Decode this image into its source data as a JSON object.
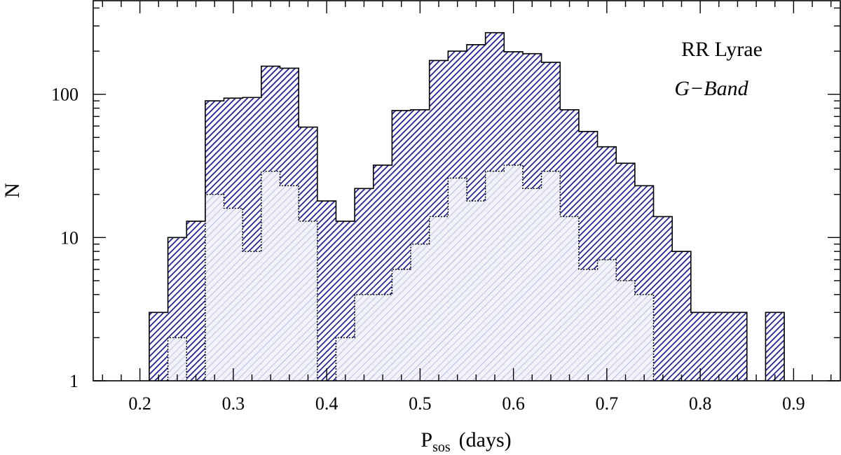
{
  "chart_data": {
    "type": "histogram",
    "y_scale": "log",
    "xlim": [
      0.15,
      0.95
    ],
    "ylim": [
      1,
      450
    ],
    "bin_width": 0.02,
    "xlabel": {
      "main": "P",
      "sub": "sos",
      "unit": "(days)"
    },
    "ylabel": "N",
    "xticks": [
      "0.2",
      "0.3",
      "0.4",
      "0.5",
      "0.6",
      "0.7",
      "0.8",
      "0.9"
    ],
    "yticks": [
      "1",
      "10",
      "100"
    ],
    "legend": {
      "line1": "RR Lyrae",
      "line2": "G−Band"
    },
    "colors": {
      "outer": "#1a1a8c",
      "inner": "#8c8ccf",
      "inner_fill": "#f2f2fa"
    },
    "series": [
      {
        "style": "dense-hatch-solid-outline",
        "bins": [
          [
            0.21,
            3
          ],
          [
            0.23,
            10
          ],
          [
            0.25,
            13
          ],
          [
            0.27,
            90
          ],
          [
            0.29,
            94
          ],
          [
            0.31,
            95
          ],
          [
            0.33,
            157
          ],
          [
            0.35,
            152
          ],
          [
            0.37,
            59
          ],
          [
            0.39,
            18
          ],
          [
            0.41,
            13
          ],
          [
            0.43,
            22
          ],
          [
            0.45,
            32
          ],
          [
            0.47,
            77
          ],
          [
            0.49,
            78
          ],
          [
            0.51,
            172
          ],
          [
            0.53,
            200
          ],
          [
            0.55,
            222
          ],
          [
            0.57,
            269
          ],
          [
            0.59,
            198
          ],
          [
            0.61,
            192
          ],
          [
            0.63,
            167
          ],
          [
            0.65,
            78
          ],
          [
            0.67,
            55
          ],
          [
            0.69,
            43
          ],
          [
            0.71,
            33
          ],
          [
            0.73,
            23
          ],
          [
            0.75,
            14
          ],
          [
            0.77,
            8
          ],
          [
            0.79,
            3
          ],
          [
            0.81,
            3
          ],
          [
            0.83,
            3
          ],
          [
            0.87,
            3
          ]
        ]
      },
      {
        "style": "light-hatch-dotted-outline",
        "bins": [
          [
            0.23,
            2
          ],
          [
            0.27,
            20
          ],
          [
            0.29,
            16
          ],
          [
            0.31,
            8
          ],
          [
            0.33,
            29
          ],
          [
            0.35,
            23
          ],
          [
            0.37,
            13
          ],
          [
            0.41,
            2
          ],
          [
            0.43,
            4
          ],
          [
            0.45,
            4
          ],
          [
            0.47,
            6
          ],
          [
            0.49,
            9
          ],
          [
            0.51,
            14
          ],
          [
            0.53,
            26
          ],
          [
            0.55,
            18
          ],
          [
            0.57,
            29
          ],
          [
            0.59,
            32
          ],
          [
            0.61,
            22
          ],
          [
            0.63,
            29
          ],
          [
            0.65,
            14
          ],
          [
            0.67,
            6
          ],
          [
            0.69,
            7
          ],
          [
            0.71,
            5
          ],
          [
            0.73,
            4
          ]
        ]
      }
    ]
  }
}
